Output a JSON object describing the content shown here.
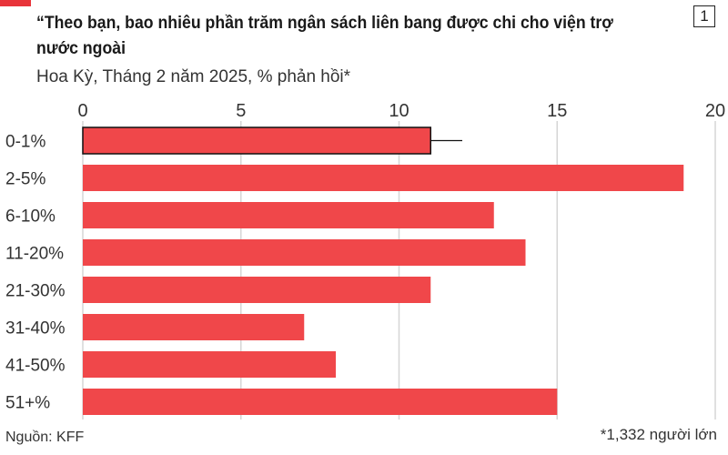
{
  "header": {
    "title": "“Theo bạn, bao nhiêu phần trăm ngân sách liên bang được chi cho viện trợ nước ngoài",
    "subtitle": "Hoa Kỳ, Tháng 2 năm 2025, % phản hồi*",
    "page_number": "1"
  },
  "footer": {
    "source": "Nguồn: KFF",
    "note": "*1,332 người lớn"
  },
  "colors": {
    "bar": "#f0474a",
    "bar_outline": "#111111",
    "grid": "#d6d6d6",
    "accent": "#e8343a"
  },
  "chart_data": {
    "type": "bar",
    "orientation": "horizontal",
    "categories": [
      "0-1%",
      "2-5%",
      "6-10%",
      "11-20%",
      "21-30%",
      "31-40%",
      "41-50%",
      "51+%"
    ],
    "values": [
      11,
      19,
      13,
      14,
      11,
      7,
      8,
      15
    ],
    "error_bar": {
      "category": "0-1%",
      "high": 12
    },
    "xlim": [
      0,
      20
    ],
    "xticks": [
      0,
      5,
      10,
      15,
      20
    ],
    "axis_position": "top",
    "grid": true,
    "legend": false
  }
}
